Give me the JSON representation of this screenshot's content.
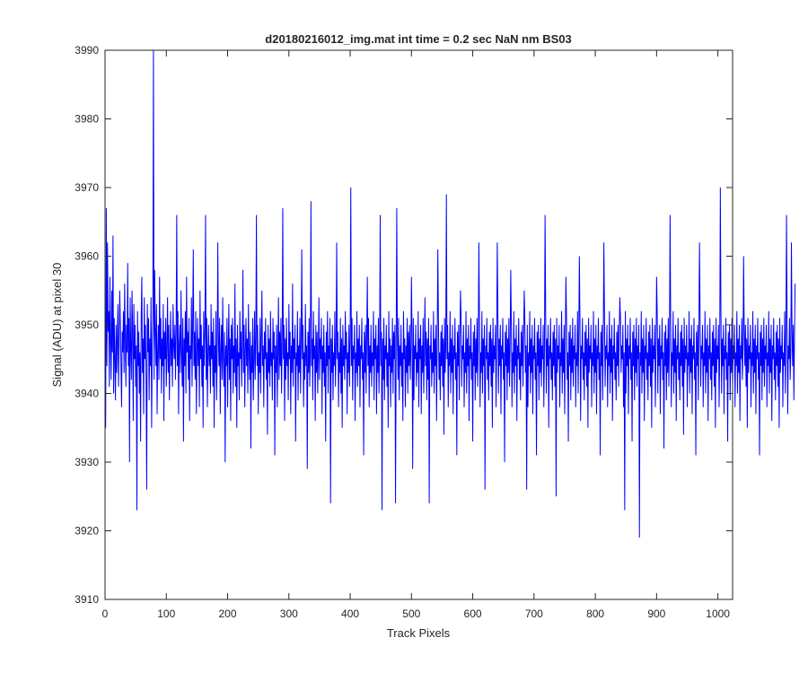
{
  "chart_data": {
    "type": "line",
    "title": "d20180216012_img.mat int time = 0.2 sec  NaN nm BS03",
    "xlabel": "Track Pixels",
    "ylabel": "Signal (ADU) at pixel 30",
    "xlim": [
      0,
      1024
    ],
    "ylim": [
      3910,
      3990
    ],
    "xticks": [
      0,
      100,
      200,
      300,
      400,
      500,
      600,
      700,
      800,
      900,
      1000
    ],
    "yticks": [
      3910,
      3920,
      3930,
      3940,
      3950,
      3960,
      3970,
      3980,
      3990
    ],
    "grid": false,
    "box": true,
    "series": [
      {
        "color": "#0000ff",
        "x_start": 1,
        "x_step": 1,
        "values": [
          3935,
          3967,
          3944,
          3962,
          3949,
          3952,
          3941,
          3957,
          3948,
          3942,
          3955,
          3946,
          3963,
          3940,
          3951,
          3945,
          3939,
          3950,
          3943,
          3948,
          3953,
          3941,
          3947,
          3955,
          3950,
          3944,
          3938,
          3949,
          3946,
          3952,
          3943,
          3956,
          3948,
          3941,
          3950,
          3946,
          3959,
          3944,
          3951,
          3930,
          3954,
          3947,
          3942,
          3955,
          3949,
          3936,
          3953,
          3945,
          3950,
          3941,
          3947,
          3923,
          3952,
          3944,
          3949,
          3940,
          3946,
          3933,
          3951,
          3957,
          3943,
          3948,
          3937,
          3954,
          3945,
          3950,
          3942,
          3926,
          3953,
          3946,
          3951,
          3939,
          3948,
          3944,
          3954,
          3935,
          3947,
          3951,
          3990,
          3942,
          3958,
          3949,
          3944,
          3953,
          3937,
          3946,
          3950,
          3942,
          3957,
          3945,
          3951,
          3940,
          3948,
          3944,
          3953,
          3936,
          3949,
          3945,
          3951,
          3941,
          3947,
          3954,
          3943,
          3950,
          3939,
          3946,
          3952,
          3944,
          3948,
          3941,
          3953,
          3947,
          3945,
          3950,
          3942,
          3949,
          3966,
          3944,
          3952,
          3937,
          3947,
          3950,
          3943,
          3955,
          3946,
          3941,
          3951,
          3933,
          3948,
          3944,
          3952,
          3940,
          3957,
          3946,
          3949,
          3942,
          3951,
          3936,
          3947,
          3945,
          3954,
          3941,
          3950,
          3961,
          3944,
          3949,
          3942,
          3952,
          3937,
          3946,
          3951,
          3944,
          3948,
          3938,
          3955,
          3945,
          3950,
          3941,
          3947,
          3935,
          3952,
          3944,
          3949,
          3966,
          3942,
          3951,
          3938,
          3946,
          3950,
          3944,
          3947,
          3940,
          3953,
          3945,
          3949,
          3941,
          3951,
          3935,
          3947,
          3943,
          3952,
          3939,
          3945,
          3962,
          3948,
          3944,
          3951,
          3937,
          3946,
          3950,
          3942,
          3954,
          3945,
          3941,
          3949,
          3930,
          3947,
          3944,
          3951,
          3938,
          3946,
          3953,
          3942,
          3948,
          3936,
          3950,
          3945,
          3951,
          3940,
          3947,
          3943,
          3956,
          3941,
          3948,
          3935,
          3950,
          3944,
          3946,
          3939,
          3952,
          3945,
          3949,
          3941,
          3947,
          3958,
          3943,
          3950,
          3938,
          3946,
          3951,
          3944,
          3948,
          3940,
          3953,
          3946,
          3942,
          3949,
          3932,
          3947,
          3943,
          3951,
          3939,
          3945,
          3952,
          3942,
          3948,
          3966,
          3944,
          3950,
          3937,
          3946,
          3943,
          3951,
          3940,
          3948,
          3955,
          3944,
          3947,
          3938,
          3949,
          3945,
          3951,
          3942,
          3946,
          3934,
          3950,
          3943,
          3948,
          3941,
          3952,
          3944,
          3946,
          3939,
          3951,
          3945,
          3949,
          3931,
          3947,
          3943,
          3950,
          3938,
          3946,
          3954,
          3942,
          3949,
          3944,
          3951,
          3940,
          3947,
          3967,
          3945,
          3950,
          3936,
          3948,
          3942,
          3951,
          3944,
          3946,
          3939,
          3953,
          3945,
          3949,
          3937,
          3947,
          3943,
          3956,
          3941,
          3948,
          3945,
          3950,
          3933,
          3946,
          3944,
          3952,
          3939,
          3947,
          3943,
          3951,
          3940,
          3948,
          3961,
          3945,
          3950,
          3938,
          3946,
          3942,
          3953,
          3944,
          3947,
          3929,
          3949,
          3943,
          3951,
          3941,
          3946,
          3968,
          3944,
          3948,
          3939,
          3952,
          3945,
          3947,
          3936,
          3950,
          3943,
          3949,
          3940,
          3946,
          3954,
          3942,
          3948,
          3945,
          3951,
          3937,
          3947,
          3943,
          3950,
          3941,
          3946,
          3933,
          3949,
          3944,
          3952,
          3940,
          3947,
          3945,
          3951,
          3924,
          3948,
          3943,
          3950,
          3939,
          3946,
          3944,
          3952,
          3941,
          3947,
          3962,
          3945,
          3949,
          3938,
          3946,
          3943,
          3951,
          3940,
          3948,
          3935,
          3950,
          3944,
          3947,
          3942,
          3952,
          3945,
          3949,
          3937,
          3946,
          3943,
          3950,
          3941,
          3948,
          3970,
          3944,
          3951,
          3939,
          3947,
          3945,
          3950,
          3936,
          3946,
          3943,
          3952,
          3941,
          3948,
          3944,
          3950,
          3938,
          3947,
          3945,
          3951,
          3942,
          3946,
          3931,
          3949,
          3943,
          3950,
          3940,
          3948,
          3957,
          3944,
          3951,
          3938,
          3947,
          3943,
          3950,
          3941,
          3946,
          3944,
          3952,
          3939,
          3948,
          3945,
          3950,
          3937,
          3947,
          3943,
          3951,
          3940,
          3946,
          3966,
          3944,
          3949,
          3923,
          3948,
          3942,
          3951,
          3939,
          3947,
          3945,
          3950,
          3941,
          3946,
          3935,
          3952,
          3944,
          3948,
          3938,
          3947,
          3943,
          3951,
          3940,
          3949,
          3945,
          3950,
          3924,
          3946,
          3967,
          3948,
          3942,
          3951,
          3939,
          3947,
          3944,
          3950,
          3941,
          3946,
          3936,
          3952,
          3945,
          3948,
          3938,
          3947,
          3943,
          3951,
          3940,
          3949,
          3944,
          3950,
          3942,
          3946,
          3957,
          3948,
          3929,
          3951,
          3939,
          3947,
          3945,
          3950,
          3941,
          3946,
          3943,
          3952,
          3938,
          3948,
          3945,
          3950,
          3937,
          3947,
          3943,
          3951,
          3940,
          3946,
          3954,
          3944,
          3949,
          3939,
          3948,
          3942,
          3951,
          3924,
          3947,
          3945,
          3950,
          3941,
          3946,
          3943,
          3952,
          3940,
          3948,
          3944,
          3950,
          3936,
          3947,
          3961,
          3951,
          3942,
          3946,
          3939,
          3949,
          3944,
          3950,
          3941,
          3948,
          3934,
          3951,
          3943,
          3947,
          3969,
          3945,
          3950,
          3938,
          3946,
          3944,
          3952,
          3940,
          3948,
          3943,
          3950,
          3937,
          3947,
          3945,
          3951,
          3942,
          3946,
          3931,
          3949,
          3944,
          3950,
          3939,
          3948,
          3955,
          3951,
          3941,
          3947,
          3945,
          3950,
          3938,
          3946,
          3943,
          3952,
          3940,
          3948,
          3944,
          3950,
          3936,
          3947,
          3945,
          3951,
          3942,
          3946,
          3933,
          3949,
          3944,
          3950,
          3939,
          3948,
          3943,
          3951,
          3941,
          3947,
          3962,
          3950,
          3938,
          3946,
          3943,
          3952,
          3940,
          3948,
          3944,
          3950,
          3926,
          3947,
          3945,
          3951,
          3942,
          3946,
          3939,
          3949,
          3944,
          3950,
          3941,
          3948,
          3935,
          3951,
          3943,
          3947,
          3945,
          3950,
          3938,
          3946,
          3962,
          3952,
          3940,
          3948,
          3944,
          3950,
          3937,
          3947,
          3945,
          3951,
          3942,
          3946,
          3930,
          3949,
          3944,
          3950,
          3939,
          3948,
          3943,
          3951,
          3941,
          3947,
          3958,
          3950,
          3938,
          3946,
          3943,
          3952,
          3940,
          3948,
          3944,
          3950,
          3936,
          3947,
          3945,
          3951,
          3942,
          3946,
          3939,
          3949,
          3944,
          3950,
          3941,
          3948,
          3955,
          3951,
          3943,
          3947,
          3926,
          3950,
          3938,
          3946,
          3944,
          3952,
          3940,
          3948,
          3943,
          3950,
          3937,
          3947,
          3945,
          3951,
          3942,
          3946,
          3931,
          3949,
          3944,
          3950,
          3939,
          3948,
          3943,
          3951,
          3941,
          3947,
          3945,
          3950,
          3938,
          3946,
          3966,
          3952,
          3940,
          3948,
          3944,
          3950,
          3935,
          3947,
          3945,
          3951,
          3942,
          3946,
          3939,
          3949,
          3944,
          3950,
          3941,
          3948,
          3925,
          3951,
          3943,
          3947,
          3945,
          3950,
          3938,
          3946,
          3944,
          3952,
          3940,
          3948,
          3943,
          3950,
          3937,
          3947,
          3957,
          3951,
          3942,
          3946,
          3933,
          3949,
          3944,
          3950,
          3939,
          3948,
          3943,
          3951,
          3941,
          3947,
          3945,
          3950,
          3938,
          3946,
          3944,
          3952,
          3940,
          3948,
          3960,
          3950,
          3936,
          3947,
          3945,
          3951,
          3942,
          3946,
          3939,
          3949,
          3944,
          3950,
          3941,
          3948,
          3935,
          3951,
          3943,
          3947,
          3945,
          3950,
          3938,
          3946,
          3944,
          3952,
          3940,
          3948,
          3943,
          3950,
          3937,
          3947,
          3945,
          3951,
          3942,
          3946,
          3931,
          3949,
          3944,
          3950,
          3939,
          3948,
          3962,
          3951,
          3941,
          3947,
          3945,
          3950,
          3938,
          3946,
          3944,
          3952,
          3940,
          3948,
          3943,
          3950,
          3936,
          3947,
          3945,
          3951,
          3942,
          3946,
          3939,
          3949,
          3944,
          3950,
          3941,
          3948,
          3954,
          3951,
          3943,
          3947,
          3945,
          3950,
          3938,
          3946,
          3923,
          3952,
          3940,
          3948,
          3944,
          3950,
          3937,
          3947,
          3945,
          3951,
          3942,
          3946,
          3933,
          3949,
          3944,
          3950,
          3939,
          3948,
          3943,
          3951,
          3941,
          3947,
          3945,
          3950,
          3919,
          3946,
          3944,
          3952,
          3940,
          3948,
          3943,
          3950,
          3936,
          3947,
          3945,
          3951,
          3942,
          3946,
          3939,
          3949,
          3944,
          3950,
          3941,
          3948,
          3935,
          3951,
          3943,
          3947,
          3945,
          3950,
          3938,
          3946,
          3957,
          3952,
          3940,
          3948,
          3944,
          3950,
          3937,
          3947,
          3945,
          3951,
          3942,
          3946,
          3932,
          3949,
          3944,
          3950,
          3939,
          3948,
          3943,
          3951,
          3941,
          3947,
          3966,
          3950,
          3938,
          3946,
          3944,
          3952,
          3940,
          3948,
          3943,
          3950,
          3936,
          3947,
          3945,
          3951,
          3942,
          3946,
          3939,
          3949,
          3944,
          3950,
          3941,
          3948,
          3934,
          3951,
          3943,
          3947,
          3945,
          3950,
          3938,
          3946,
          3944,
          3952,
          3940,
          3948,
          3943,
          3950,
          3937,
          3947,
          3945,
          3951,
          3942,
          3946,
          3931,
          3949,
          3944,
          3950,
          3939,
          3948,
          3962,
          3951,
          3941,
          3947,
          3945,
          3950,
          3938,
          3946,
          3944,
          3952,
          3940,
          3948,
          3943,
          3950,
          3936,
          3947,
          3945,
          3951,
          3942,
          3946,
          3939,
          3949,
          3944,
          3950,
          3941,
          3948,
          3935,
          3951,
          3943,
          3947,
          3945,
          3950,
          3938,
          3946,
          3970,
          3952,
          3940,
          3948,
          3944,
          3950,
          3937,
          3947,
          3945,
          3951,
          3942,
          3946,
          3933,
          3949,
          3944,
          3950,
          3939,
          3948,
          3943,
          3951,
          3941,
          3947,
          3945,
          3950,
          3938,
          3946,
          3944,
          3952,
          3940,
          3948,
          3943,
          3950,
          3936,
          3947,
          3945,
          3951,
          3942,
          3946,
          3960,
          3949,
          3944,
          3950,
          3941,
          3948,
          3935,
          3951,
          3943,
          3947,
          3945,
          3950,
          3938,
          3946,
          3944,
          3952,
          3940,
          3948,
          3943,
          3950,
          3937,
          3947,
          3945,
          3951,
          3942,
          3946,
          3931,
          3949,
          3944,
          3950,
          3939,
          3948,
          3943,
          3951,
          3941,
          3947,
          3945,
          3950,
          3938,
          3946,
          3944,
          3952,
          3940,
          3948,
          3943,
          3950,
          3936,
          3947,
          3945,
          3951,
          3942,
          3946,
          3939,
          3949,
          3944,
          3950,
          3941,
          3948,
          3935,
          3951,
          3943,
          3947,
          3945,
          3950,
          3938,
          3946,
          3944,
          3952,
          3940,
          3948,
          3966,
          3950,
          3937,
          3947,
          3945,
          3951,
          3942,
          3946,
          3962,
          3949,
          3944,
          3950,
          3939,
          3948,
          3956
        ]
      }
    ]
  }
}
